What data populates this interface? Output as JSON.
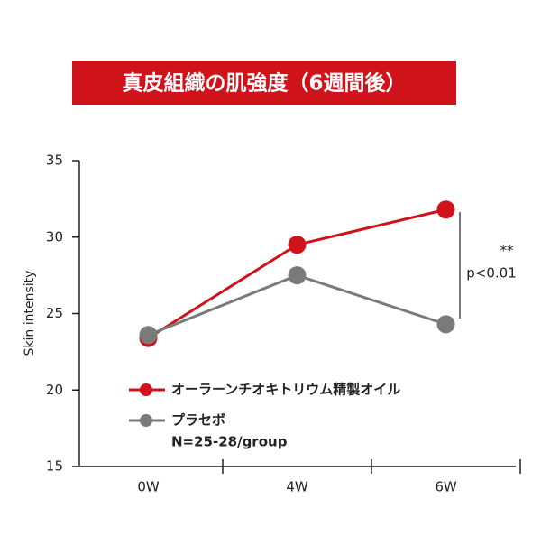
{
  "chart_data": {
    "type": "line",
    "title": "真皮組織の肌強度（6週間後）",
    "y_label": "Skin intensity",
    "categories": [
      "0W",
      "4W",
      "6W"
    ],
    "series": [
      {
        "name": "オーラーンチオキトリウム精製オイル",
        "color": "#d0121b",
        "values": [
          23.4,
          29.5,
          31.8
        ]
      },
      {
        "name": "プラセボ",
        "color": "#7a7a7a",
        "values": [
          23.6,
          27.5,
          24.3
        ]
      }
    ],
    "legend_note": "N=25-28/group",
    "annotations": [
      "**",
      "p<0.01"
    ],
    "ylim": [
      15,
      35
    ],
    "yticks": [
      15,
      20,
      25,
      30,
      35
    ]
  }
}
